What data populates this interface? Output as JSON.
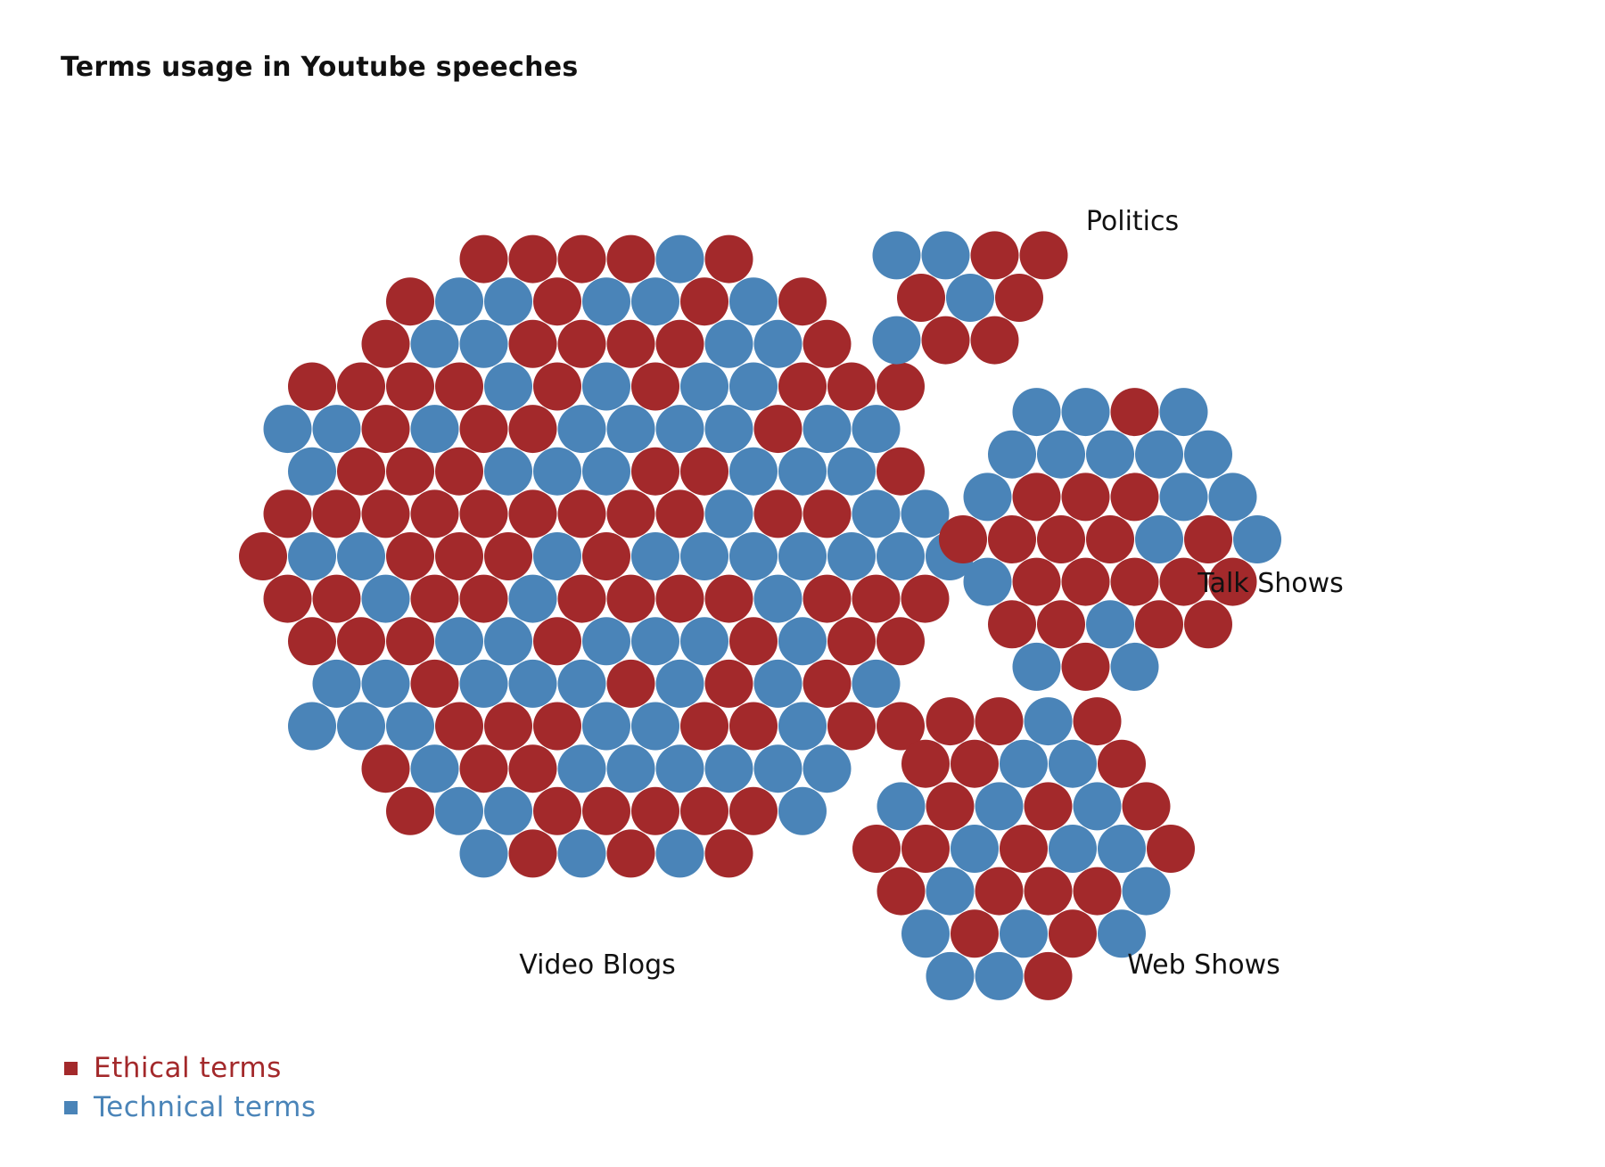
{
  "chart_data": {
    "type": "packed-bubble",
    "title": "Terms usage in Youtube speeches",
    "legend_position": "bottom-left",
    "legend": [
      {
        "key": "ethical",
        "label": "Ethical terms",
        "color": "#a3292b"
      },
      {
        "key": "technical",
        "label": "Technical terms",
        "color": "#4a84b8"
      }
    ],
    "groups": [
      {
        "name": "Video Blogs",
        "ethical": 91,
        "technical": 79
      },
      {
        "name": "Politics",
        "ethical": 6,
        "technical": 4
      },
      {
        "name": "Talk Shows",
        "ethical": 19,
        "technical": 17
      },
      {
        "name": "Web Shows",
        "ethical": 20,
        "technical": 16
      }
    ]
  }
}
